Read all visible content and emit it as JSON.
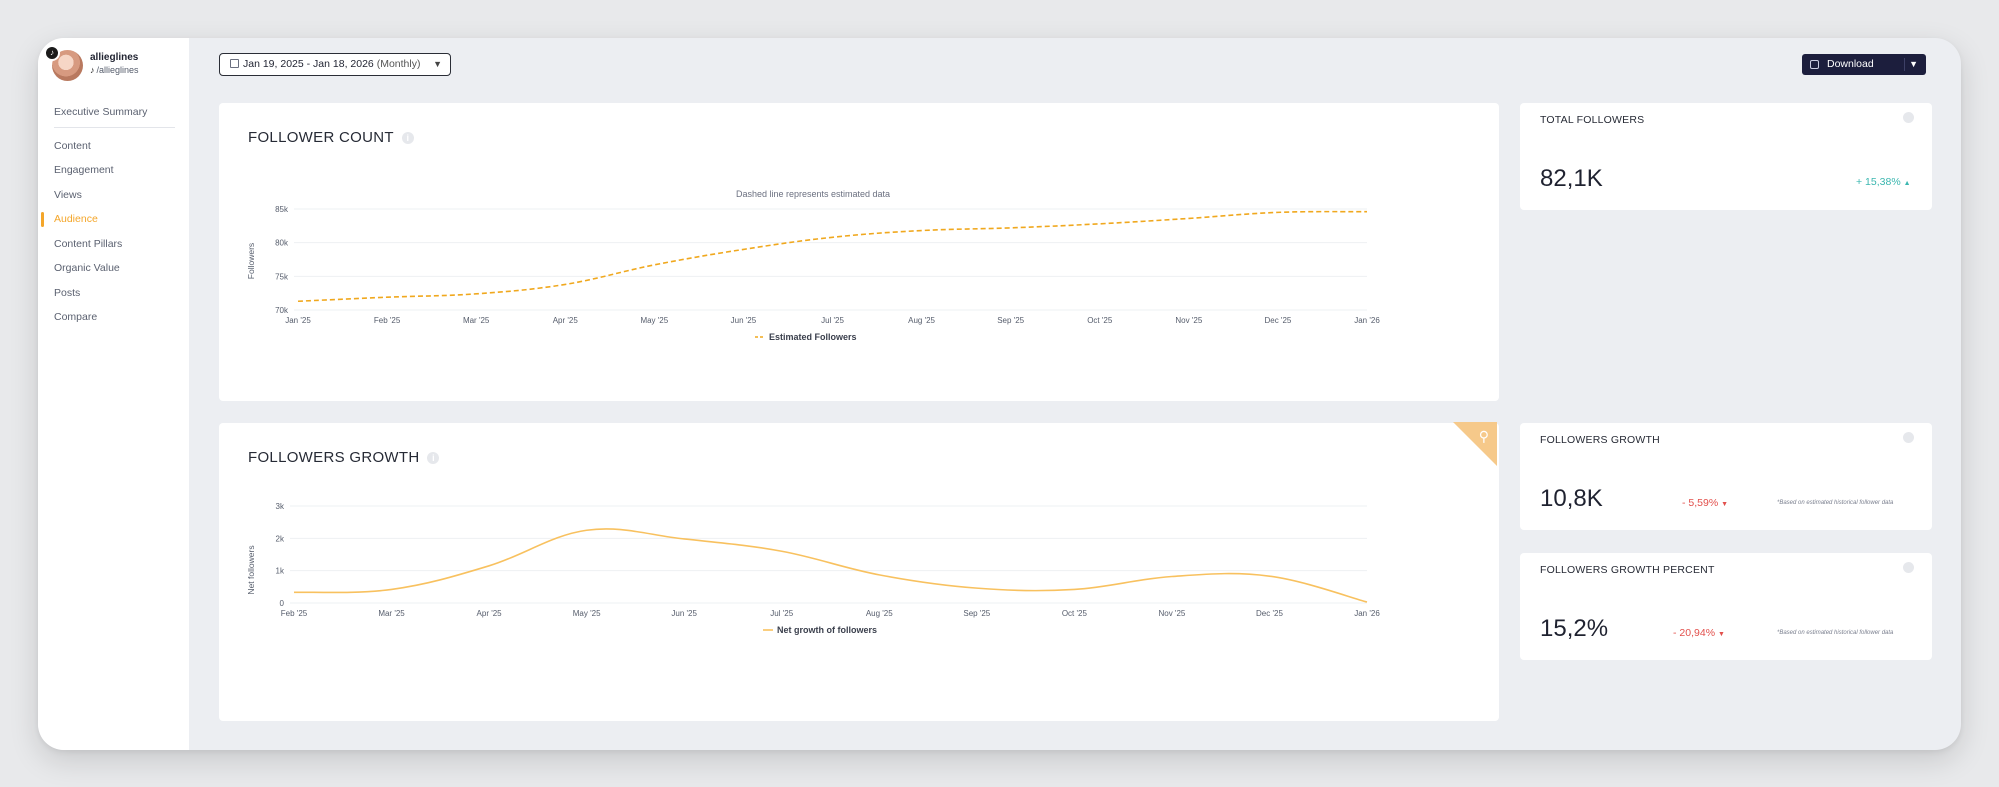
{
  "profile": {
    "username": "allieglines",
    "handle": "/allieglines",
    "platform_icon": "tiktok-icon"
  },
  "sidebar": {
    "items": [
      {
        "label": "Executive Summary",
        "active": false
      },
      {
        "label": "Content",
        "active": false
      },
      {
        "label": "Engagement",
        "active": false
      },
      {
        "label": "Views",
        "active": false
      },
      {
        "label": "Audience",
        "active": true
      },
      {
        "label": "Content Pillars",
        "active": false
      },
      {
        "label": "Organic Value",
        "active": false
      },
      {
        "label": "Posts",
        "active": false
      },
      {
        "label": "Compare",
        "active": false
      }
    ]
  },
  "toolbar": {
    "date_range": "Jan 19, 2025 - Jan 18, 2026",
    "period": "(Monthly)",
    "download_label": "Download"
  },
  "follower_count": {
    "title": "FOLLOWER COUNT",
    "note": "Dashed line represents estimated data",
    "chart_data": {
      "type": "line",
      "title": "FOLLOWER COUNT",
      "subtitle": "Dashed line represents estimated data",
      "xlabel": "",
      "ylabel": "Followers",
      "ylim": [
        70000,
        85000
      ],
      "y_ticks": [
        "70k",
        "75k",
        "80k",
        "85k"
      ],
      "y_tick_values": [
        70000,
        75000,
        80000,
        85000
      ],
      "categories": [
        "Jan '25",
        "Feb '25",
        "Mar '25",
        "Apr '25",
        "May '25",
        "Jun '25",
        "Jul '25",
        "Aug '25",
        "Sep '25",
        "Oct '25",
        "Nov '25",
        "Dec '25",
        "Jan '26"
      ],
      "series": [
        {
          "name": "Estimated Followers",
          "color": "#f0a81e",
          "dashed": true,
          "values": [
            71300,
            71900,
            72400,
            73800,
            76700,
            79000,
            80800,
            81800,
            82200,
            82800,
            83600,
            84500,
            84600
          ]
        }
      ],
      "legend": "bottom-center",
      "grid": true
    }
  },
  "followers_growth": {
    "title": "FOLLOWERS GROWTH",
    "chart_data": {
      "type": "line",
      "title": "FOLLOWERS GROWTH",
      "xlabel": "",
      "ylabel": "Net followers",
      "ylim": [
        0,
        3000
      ],
      "y_ticks": [
        "0",
        "1k",
        "2k",
        "3k"
      ],
      "y_tick_values": [
        0,
        1000,
        2000,
        3000
      ],
      "categories": [
        "Feb '25",
        "Mar '25",
        "Apr '25",
        "May '25",
        "Jun '25",
        "Jul '25",
        "Aug '25",
        "Sep '25",
        "Oct '25",
        "Nov '25",
        "Dec '25",
        "Jan '26"
      ],
      "series": [
        {
          "name": "Net growth of followers",
          "color": "#f8c15f",
          "dashed": false,
          "values": [
            330,
            420,
            1150,
            2250,
            1980,
            1600,
            870,
            460,
            420,
            820,
            830,
            30
          ]
        }
      ],
      "legend": "bottom-center",
      "grid": true
    }
  },
  "stats": {
    "total_followers": {
      "title": "TOTAL FOLLOWERS",
      "value": "82,1K",
      "delta": "+ 15,38%",
      "direction": "up"
    },
    "followers_growth": {
      "title": "FOLLOWERS GROWTH",
      "value": "10,8K",
      "delta": "- 5,59%",
      "direction": "down",
      "note": "*Based on estimated historical follower data"
    },
    "followers_growth_percent": {
      "title": "FOLLOWERS GROWTH PERCENT",
      "value": "15,2%",
      "delta": "- 20,94%",
      "direction": "down",
      "note": "*Based on estimated historical follower data"
    }
  },
  "colors": {
    "accent": "#f4a62a",
    "primary_dark": "#1c1e3d",
    "positive": "#3cb7b0",
    "negative": "#e2504c"
  },
  "icons": {
    "date_picker": "calendar-icon",
    "download": "download-icon",
    "search_corner": "search-icon"
  }
}
